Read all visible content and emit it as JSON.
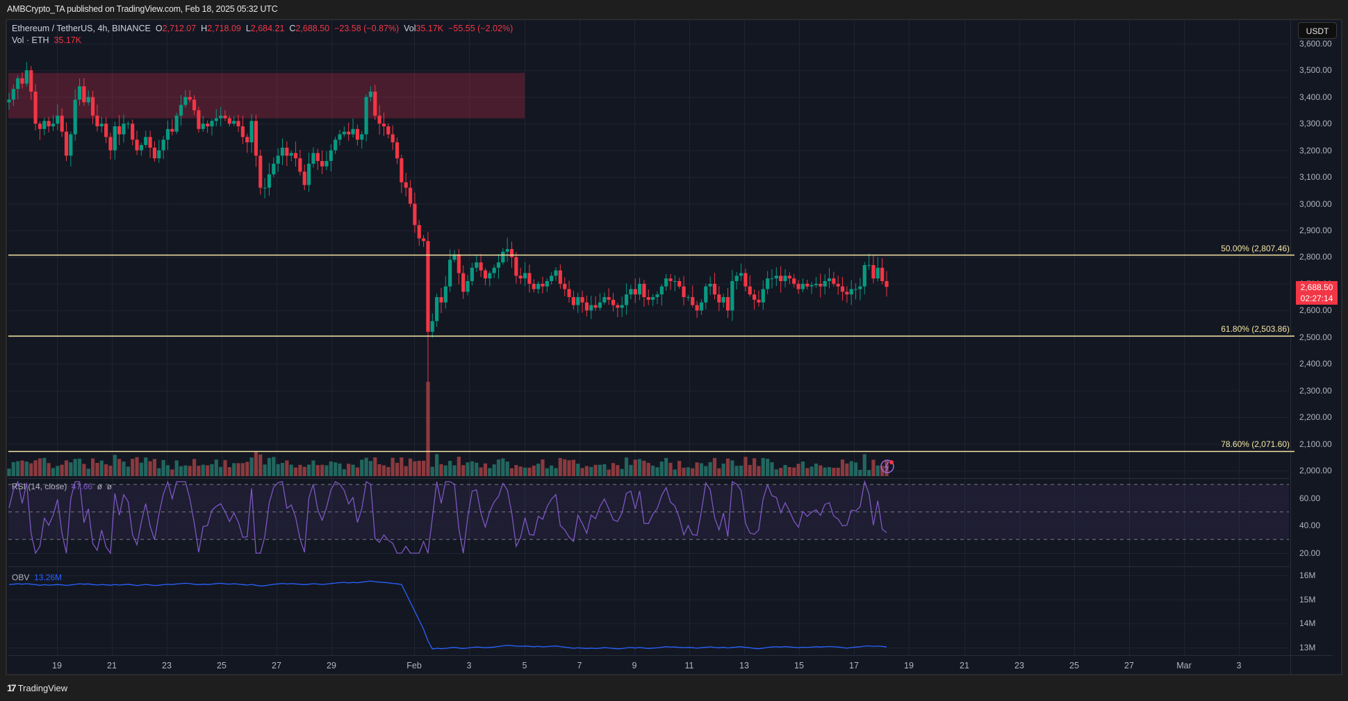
{
  "publisher_line": "AMBCrypto_TA published on TradingView.com, Feb 18, 2025 05:32 UTC",
  "symbol": {
    "title": "Ethereum / TetherUS, 4h, BINANCE",
    "open_label": "O",
    "open": "2,712.07",
    "high_label": "H",
    "high": "2,718.09",
    "low_label": "L",
    "low": "2,684.21",
    "close_label": "C",
    "close": "2,688.50",
    "change": "−23.58 (−0.87%)",
    "vol_label": "Vol",
    "vol": "35.17K",
    "vol_change": "−55.55 (−2.02%)"
  },
  "volume_legend": {
    "label": "Vol · ETH",
    "value": "35.17K"
  },
  "currency_button": "USDT",
  "last_price": {
    "price": "2,688.50",
    "countdown": "02:27:14"
  },
  "rsi_legend": {
    "label": "RSI (14, close)",
    "value": "47.66",
    "extra1": "ø",
    "extra2": "ø"
  },
  "obv_legend": {
    "label": "OBV",
    "value": "13.26M"
  },
  "footer_brand": "TradingView",
  "colors": {
    "up": "#089981",
    "down": "#f23645",
    "vol_up": "#22675f",
    "vol_down": "#8b3a3e",
    "fib": "#f5e7a3",
    "rsi": "#7e57c2",
    "obv": "#2962ff",
    "zone": "rgba(178,40,70,0.35)"
  },
  "chart_data": [
    {
      "type": "candlestick",
      "title": "Ethereum / TetherUS, 4h, BINANCE",
      "ylabel": "USDT",
      "ylim": [
        2000,
        3600
      ],
      "y_ticks": [
        "3,600.00",
        "3,500.00",
        "3,400.00",
        "3,300.00",
        "3,200.00",
        "3,100.00",
        "3,000.00",
        "2,900.00",
        "2,800.00",
        "2,700.00",
        "2,600.00",
        "2,500.00",
        "2,400.00",
        "2,300.00",
        "2,200.00",
        "2,100.00",
        "2,000.00"
      ],
      "x_ticks": [
        "19",
        "21",
        "23",
        "25",
        "27",
        "29",
        "Feb",
        "3",
        "5",
        "7",
        "9",
        "11",
        "13",
        "15",
        "17",
        "19",
        "21",
        "23",
        "25",
        "27",
        "Mar",
        "3"
      ],
      "grid": true,
      "fib_levels": [
        {
          "label": "50.00% (2,807.46)",
          "value": 2807.46
        },
        {
          "label": "61.80% (2,503.86)",
          "value": 2503.86
        },
        {
          "label": "78.60% (2,071.60)",
          "value": 2071.6
        }
      ],
      "supply_zone": {
        "from_date": "Jan 17",
        "to_date": "Feb 4",
        "low": 3320,
        "high": 3490
      },
      "approx_closes": [
        3390,
        3430,
        3470,
        3450,
        3500,
        3420,
        3300,
        3280,
        3310,
        3290,
        3300,
        3330,
        3270,
        3180,
        3260,
        3390,
        3440,
        3380,
        3400,
        3330,
        3290,
        3300,
        3250,
        3200,
        3290,
        3260,
        3300,
        3300,
        3240,
        3200,
        3220,
        3250,
        3210,
        3170,
        3200,
        3240,
        3280,
        3270,
        3330,
        3370,
        3400,
        3390,
        3350,
        3280,
        3300,
        3290,
        3310,
        3320,
        3330,
        3320,
        3300,
        3310,
        3290,
        3250,
        3230,
        3310,
        3180,
        3060,
        3060,
        3110,
        3150,
        3180,
        3210,
        3180,
        3190,
        3170,
        3120,
        3070,
        3150,
        3190,
        3160,
        3140,
        3160,
        3200,
        3240,
        3260,
        3270,
        3260,
        3280,
        3240,
        3260,
        3400,
        3420,
        3330,
        3300,
        3290,
        3260,
        3230,
        3170,
        3080,
        3060,
        3000,
        2920,
        2870,
        2860,
        2520,
        2560,
        2650,
        2630,
        2690,
        2790,
        2810,
        2740,
        2670,
        2710,
        2760,
        2780,
        2750,
        2720,
        2740,
        2760,
        2780,
        2820,
        2830,
        2800,
        2730,
        2720,
        2740,
        2700,
        2680,
        2700,
        2690,
        2710,
        2730,
        2750,
        2700,
        2680,
        2650,
        2620,
        2650,
        2630,
        2600,
        2620,
        2610,
        2630,
        2650,
        2640,
        2620,
        2610,
        2620,
        2660,
        2680,
        2660,
        2700,
        2650,
        2640,
        2650,
        2660,
        2690,
        2720,
        2710,
        2710,
        2690,
        2650,
        2650,
        2620,
        2600,
        2630,
        2690,
        2700,
        2660,
        2630,
        2650,
        2600,
        2710,
        2730,
        2740,
        2690,
        2660,
        2640,
        2630,
        2680,
        2720,
        2720,
        2730,
        2710,
        2730,
        2720,
        2700,
        2680,
        2700,
        2690,
        2695,
        2700,
        2690,
        2710,
        2720,
        2700,
        2690,
        2670,
        2660,
        2680,
        2680,
        2690,
        2770,
        2770,
        2720,
        2760,
        2710,
        2688.5
      ],
      "rsi_ylim": [
        10,
        80
      ],
      "rsi_ticks": [
        "60.00",
        "40.00",
        "20.00"
      ],
      "rsi_bands": [
        70,
        50,
        30
      ],
      "rsi_last": 47.66,
      "obv_ticks": [
        "16M",
        "15M",
        "14M",
        "13M"
      ],
      "obv_last_millions": 13.26
    }
  ]
}
